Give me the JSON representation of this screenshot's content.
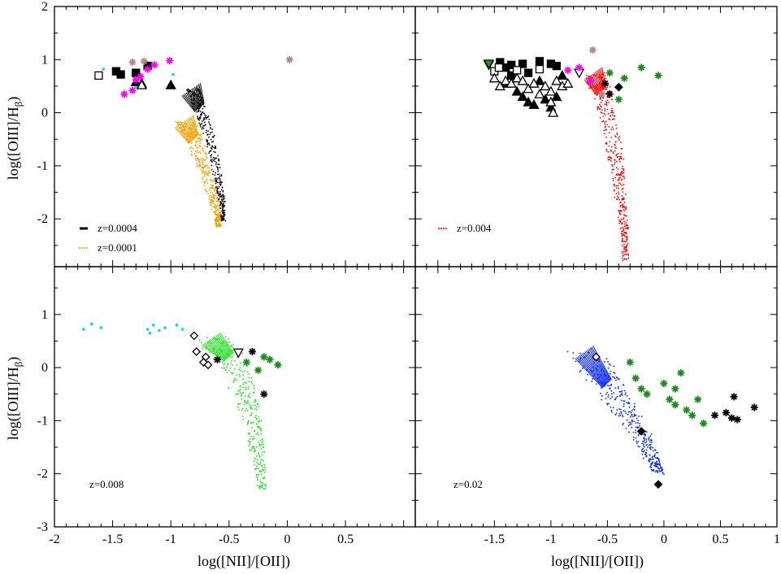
{
  "figure": {
    "xlabel_left": "log([NII]/[OII])",
    "xlabel_right": "log([NII]/[OII])",
    "ylabel_top": "log([OIII]/H",
    "ylabel_bottom": "log([OIII]/H",
    "ylabel_sub": "β",
    "ylabel_close": ")"
  },
  "chart_data": [
    {
      "type": "scatter",
      "panel": "top-left",
      "xlim": [
        -2,
        1.1
      ],
      "ylim": [
        -2.9,
        2
      ],
      "yticks": [
        -2,
        -1,
        0,
        1,
        2
      ],
      "series": [
        {
          "name": "z=0.0004",
          "kind": "model-dots",
          "color": "#000000",
          "track": [
            [
              -0.82,
              0.45
            ],
            [
              -0.75,
              0.1
            ],
            [
              -0.66,
              -0.5
            ],
            [
              -0.6,
              -1.2
            ],
            [
              -0.56,
              -1.7
            ],
            [
              -0.55,
              -2.05
            ]
          ],
          "spread": 0.03
        },
        {
          "name": "z=0.0001",
          "kind": "model-dots",
          "color": "#f0a000",
          "track": [
            [
              -0.88,
              -0.15
            ],
            [
              -0.8,
              -0.5
            ],
            [
              -0.72,
              -1.0
            ],
            [
              -0.65,
              -1.5
            ],
            [
              -0.6,
              -1.9
            ],
            [
              -0.59,
              -2.15
            ]
          ],
          "spread": 0.04
        },
        {
          "name": "obs-filled-square",
          "kind": "obs",
          "marker": "square-filled",
          "color": "#000000",
          "points": [
            [
              -1.47,
              0.78
            ],
            [
              -1.43,
              0.72
            ],
            [
              -1.3,
              0.75
            ],
            [
              -1.2,
              0.88
            ]
          ]
        },
        {
          "name": "obs-open-square",
          "kind": "obs",
          "marker": "square-open",
          "color": "#000000",
          "points": [
            [
              -1.62,
              0.7
            ]
          ]
        },
        {
          "name": "obs-filled-triangle",
          "kind": "obs",
          "marker": "triangle-filled",
          "color": "#000000",
          "points": [
            [
              -1.3,
              0.58
            ],
            [
              -1.25,
              0.55
            ],
            [
              -1.0,
              0.52
            ]
          ]
        },
        {
          "name": "obs-open-triangle",
          "kind": "obs",
          "marker": "triangle-open",
          "color": "#000000",
          "points": [
            [
              -1.25,
              0.52
            ]
          ]
        },
        {
          "name": "obs-cyan",
          "kind": "obs",
          "marker": "dot",
          "color": "#00d8e8",
          "points": [
            [
              -1.58,
              0.82
            ],
            [
              -1.15,
              0.9
            ],
            [
              -0.98,
              0.72
            ],
            [
              -1.3,
              0.48
            ]
          ]
        },
        {
          "name": "obs-magenta",
          "kind": "obs",
          "marker": "star",
          "color": "#ff00ff",
          "points": [
            [
              -1.2,
              0.82
            ],
            [
              -1.14,
              0.9
            ],
            [
              -1.01,
              0.98
            ],
            [
              -1.3,
              0.62
            ],
            [
              -1.33,
              0.42
            ],
            [
              -1.4,
              0.35
            ],
            [
              -1.26,
              0.68
            ]
          ]
        },
        {
          "name": "obs-rosy",
          "kind": "obs",
          "marker": "star",
          "color": "#b08a86",
          "points": [
            [
              -1.33,
              0.95
            ],
            [
              -1.23,
              0.97
            ],
            [
              0.02,
              1.0
            ]
          ]
        }
      ],
      "legend": [
        {
          "label": "z=0.0004",
          "color": "#000000",
          "style": "solid"
        },
        {
          "label": "z=0.0001",
          "color": "#f0a000",
          "style": "dotted"
        }
      ]
    },
    {
      "type": "scatter",
      "panel": "top-right",
      "xlim": [
        -2.2,
        1
      ],
      "ylim": [
        -2.9,
        2
      ],
      "yticks": [
        -2,
        -1,
        0,
        1,
        2
      ],
      "series": [
        {
          "name": "z=0.004",
          "kind": "model-dots",
          "color": "#ff0000",
          "track": [
            [
              -0.62,
              0.75
            ],
            [
              -0.55,
              0.4
            ],
            [
              -0.48,
              -0.2
            ],
            [
              -0.42,
              -0.9
            ],
            [
              -0.38,
              -1.6
            ],
            [
              -0.35,
              -2.2
            ],
            [
              -0.34,
              -2.8
            ]
          ],
          "spread": 0.05
        },
        {
          "name": "obs-filled-square",
          "kind": "obs",
          "marker": "square-filled",
          "color": "#000000",
          "points": [
            [
              -1.45,
              0.95
            ],
            [
              -1.4,
              0.85
            ],
            [
              -1.35,
              0.9
            ],
            [
              -1.25,
              0.92
            ],
            [
              -1.1,
              0.97
            ],
            [
              -1.0,
              0.92
            ],
            [
              -0.95,
              0.88
            ],
            [
              -1.2,
              0.75
            ],
            [
              -1.35,
              0.7
            ]
          ]
        },
        {
          "name": "obs-open-square",
          "kind": "obs",
          "marker": "square-open",
          "color": "#000000",
          "points": [
            [
              -1.5,
              0.78
            ],
            [
              -1.46,
              0.85
            ],
            [
              -1.3,
              0.8
            ],
            [
              -1.1,
              0.82
            ]
          ]
        },
        {
          "name": "obs-filled-triangle",
          "kind": "obs",
          "marker": "triangle-filled",
          "color": "#000000",
          "points": [
            [
              -1.4,
              0.55
            ],
            [
              -1.3,
              0.4
            ],
            [
              -1.25,
              0.3
            ],
            [
              -1.2,
              0.2
            ],
            [
              -1.15,
              0.15
            ],
            [
              -1.05,
              0.25
            ],
            [
              -1.0,
              0.1
            ],
            [
              -0.95,
              0.3
            ],
            [
              -1.1,
              0.6
            ],
            [
              -0.9,
              0.7
            ]
          ]
        },
        {
          "name": "obs-open-triangle",
          "kind": "obs",
          "marker": "triangle-open",
          "color": "#000000",
          "points": [
            [
              -1.5,
              0.65
            ],
            [
              -1.45,
              0.5
            ],
            [
              -1.4,
              0.6
            ],
            [
              -1.35,
              0.55
            ],
            [
              -1.3,
              0.65
            ],
            [
              -1.25,
              0.6
            ],
            [
              -1.2,
              0.45
            ],
            [
              -1.15,
              0.55
            ],
            [
              -1.05,
              0.5
            ],
            [
              -1.0,
              0.4
            ],
            [
              -0.95,
              0.6
            ],
            [
              -0.9,
              0.5
            ],
            [
              -0.85,
              0.55
            ],
            [
              -1.1,
              0.35
            ],
            [
              -0.98,
              0.0
            ],
            [
              -1.0,
              0.2
            ]
          ]
        },
        {
          "name": "obs-open-down-triangle",
          "kind": "obs",
          "marker": "down-triangle-open",
          "color": "#000000",
          "points": [
            [
              -1.55,
              0.9
            ],
            [
              -0.75,
              0.75
            ]
          ]
        },
        {
          "name": "obs-green-triangle",
          "kind": "obs",
          "marker": "down-triangle-filled",
          "color": "#1a9b1a",
          "points": [
            [
              -1.55,
              0.92
            ]
          ]
        },
        {
          "name": "obs-diamond",
          "kind": "obs",
          "marker": "diamond-filled",
          "color": "#000000",
          "points": [
            [
              -0.4,
              0.48
            ]
          ]
        },
        {
          "name": "obs-black-star",
          "kind": "obs",
          "marker": "star",
          "color": "#000000",
          "points": [
            [
              -0.52,
              0.55
            ],
            [
              -0.48,
              0.35
            ]
          ]
        },
        {
          "name": "obs-green-star",
          "kind": "obs",
          "marker": "star",
          "color": "#1a8a1a",
          "points": [
            [
              -0.35,
              0.65
            ],
            [
              -0.2,
              0.85
            ],
            [
              -0.05,
              0.7
            ],
            [
              -0.48,
              0.75
            ],
            [
              -0.4,
              0.25
            ]
          ]
        },
        {
          "name": "obs-rosy",
          "kind": "obs",
          "marker": "star",
          "color": "#b08a86",
          "points": [
            [
              -0.63,
              1.18
            ],
            [
              -0.55,
              0.35
            ],
            [
              -0.6,
              0.6
            ]
          ]
        },
        {
          "name": "obs-magenta",
          "kind": "obs",
          "marker": "star",
          "color": "#ff00ff",
          "points": [
            [
              -0.85,
              0.8
            ],
            [
              -0.75,
              0.85
            ],
            [
              -0.65,
              0.6
            ]
          ]
        }
      ],
      "legend": [
        {
          "label": "z=0.004",
          "color": "#ff0000",
          "style": "dotted"
        }
      ]
    },
    {
      "type": "scatter",
      "panel": "bottom-left",
      "xlim": [
        -2,
        1.1
      ],
      "ylim": [
        -3,
        1.9
      ],
      "yticks": [
        -3,
        -2,
        -1,
        0,
        1
      ],
      "xticks": [
        -2,
        -1.5,
        -1,
        -0.5,
        0,
        0.5
      ],
      "xticklabels": [
        "-2",
        "-1.5",
        "-1",
        "-0.5",
        "0",
        "0.5"
      ],
      "series": [
        {
          "name": "z=0.008",
          "kind": "model-dots",
          "color": "#22e022",
          "track": [
            [
              -0.65,
              0.55
            ],
            [
              -0.5,
              0.2
            ],
            [
              -0.38,
              -0.4
            ],
            [
              -0.3,
              -1.0
            ],
            [
              -0.25,
              -1.6
            ],
            [
              -0.22,
              -2.3
            ]
          ],
          "spread": 0.07
        },
        {
          "name": "obs-cyan",
          "kind": "obs",
          "marker": "dot",
          "color": "#00d8e8",
          "points": [
            [
              -1.75,
              0.72
            ],
            [
              -1.68,
              0.82
            ],
            [
              -1.6,
              0.75
            ],
            [
              -1.2,
              0.72
            ],
            [
              -1.15,
              0.8
            ],
            [
              -1.1,
              0.7
            ],
            [
              -1.05,
              0.75
            ],
            [
              -0.95,
              0.8
            ],
            [
              -0.9,
              0.72
            ],
            [
              -1.18,
              0.65
            ]
          ]
        },
        {
          "name": "obs-open-diamond",
          "kind": "obs",
          "marker": "diamond-open",
          "color": "#000000",
          "points": [
            [
              -0.8,
              0.6
            ],
            [
              -0.78,
              0.3
            ],
            [
              -0.72,
              0.1
            ],
            [
              -0.68,
              0.05
            ],
            [
              -0.7,
              0.2
            ]
          ]
        },
        {
          "name": "obs-open-down-triangle",
          "kind": "obs",
          "marker": "down-triangle-open",
          "color": "#000000",
          "points": [
            [
              -0.42,
              0.28
            ]
          ]
        },
        {
          "name": "obs-black-star",
          "kind": "obs",
          "marker": "star",
          "color": "#000000",
          "points": [
            [
              -0.3,
              0.3
            ],
            [
              -0.2,
              -0.5
            ],
            [
              -0.6,
              0.15
            ]
          ]
        },
        {
          "name": "obs-green-star",
          "kind": "obs",
          "marker": "star",
          "color": "#1a8a1a",
          "points": [
            [
              -0.2,
              0.2
            ],
            [
              -0.15,
              0.15
            ],
            [
              -0.08,
              0.05
            ],
            [
              -0.25,
              -0.05
            ],
            [
              -0.35,
              0.1
            ]
          ]
        }
      ],
      "legend": [
        {
          "label": "z=0.008",
          "color": "#22e022",
          "style": "none"
        }
      ]
    },
    {
      "type": "scatter",
      "panel": "bottom-right",
      "xlim": [
        -2.2,
        1
      ],
      "ylim": [
        -3,
        1.9
      ],
      "yticks": [
        -3,
        -2,
        -1,
        0,
        1
      ],
      "xticks": [
        -1.5,
        -1,
        -0.5,
        0,
        0.5,
        1
      ],
      "xticklabels": [
        "-1.5",
        "-1",
        "-0.5",
        "0",
        "0.5",
        "1"
      ],
      "series": [
        {
          "name": "z=0.02",
          "kind": "model-dots",
          "color": "#0020ff",
          "track": [
            [
              -0.7,
              0.3
            ],
            [
              -0.5,
              -0.3
            ],
            [
              -0.35,
              -0.8
            ],
            [
              -0.2,
              -1.3
            ],
            [
              -0.1,
              -1.7
            ],
            [
              -0.05,
              -2.0
            ]
          ],
          "spread": 0.08
        },
        {
          "name": "obs-open-diamond",
          "kind": "obs",
          "marker": "diamond-open",
          "color": "#000000",
          "points": [
            [
              -0.6,
              0.2
            ]
          ]
        },
        {
          "name": "obs-filled-diamond",
          "kind": "obs",
          "marker": "diamond-filled",
          "color": "#000000",
          "points": [
            [
              -0.2,
              -1.2
            ],
            [
              -0.05,
              -2.2
            ]
          ]
        },
        {
          "name": "obs-green-star",
          "kind": "obs",
          "marker": "star",
          "color": "#1a8a1a",
          "points": [
            [
              -0.3,
              0.1
            ],
            [
              -0.25,
              -0.2
            ],
            [
              -0.2,
              -0.4
            ],
            [
              -0.15,
              -0.5
            ],
            [
              0.0,
              -0.3
            ],
            [
              0.05,
              -0.6
            ],
            [
              0.1,
              -0.7
            ],
            [
              0.15,
              -0.1
            ],
            [
              0.2,
              -0.8
            ],
            [
              0.25,
              -0.9
            ],
            [
              0.3,
              -0.6
            ],
            [
              0.35,
              -1.05
            ],
            [
              0.1,
              -0.4
            ]
          ]
        },
        {
          "name": "obs-black-star",
          "kind": "obs",
          "marker": "star",
          "color": "#000000",
          "points": [
            [
              0.45,
              -0.9
            ],
            [
              0.55,
              -0.85
            ],
            [
              0.6,
              -0.95
            ],
            [
              0.62,
              -0.55
            ],
            [
              0.65,
              -0.98
            ],
            [
              0.8,
              -0.75
            ]
          ]
        }
      ],
      "legend": [
        {
          "label": "z=0.02",
          "color": "#0020ff",
          "style": "none"
        }
      ]
    }
  ]
}
